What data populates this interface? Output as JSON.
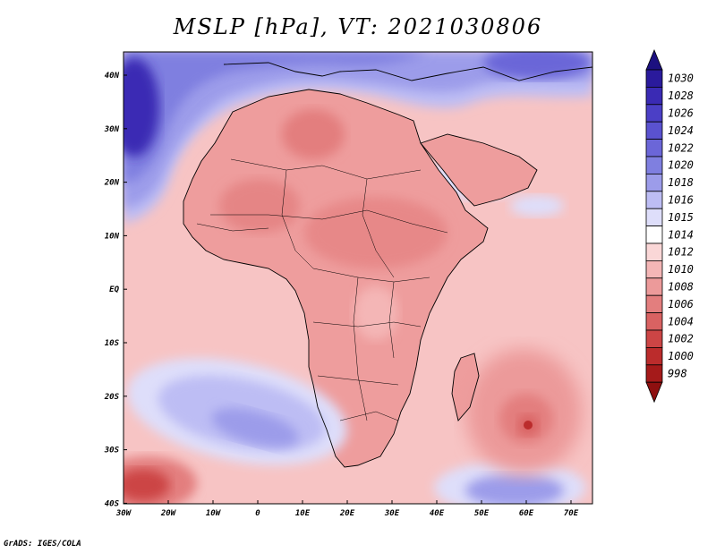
{
  "title": "MSLP [hPa], VT: 2021030806",
  "credit": "GrADS: IGES/COLA",
  "axes": {
    "lon_labels": [
      "30W",
      "20W",
      "10W",
      "0",
      "10E",
      "20E",
      "30E",
      "40E",
      "50E",
      "60E",
      "70E"
    ],
    "lat_labels": [
      "40N",
      "30N",
      "20N",
      "10N",
      "EQ",
      "10S",
      "20S",
      "30S",
      "40S"
    ]
  },
  "colorbar": {
    "levels": [
      "1030",
      "1028",
      "1026",
      "1024",
      "1022",
      "1020",
      "1018",
      "1016",
      "1015",
      "1014",
      "1012",
      "1010",
      "1008",
      "1006",
      "1004",
      "1002",
      "1000",
      "998"
    ],
    "colors": [
      "#2a1a9c",
      "#3a2ab4",
      "#4b3fc6",
      "#5a52d0",
      "#6b66d8",
      "#7f7fe0",
      "#9c9cea",
      "#bdbdf4",
      "#dedefa",
      "#ffffff",
      "#fad7d7",
      "#f4b6b6",
      "#ec9a9a",
      "#e37e7e",
      "#d96262",
      "#cc4545",
      "#bb2c2c",
      "#a51a1a"
    ],
    "top_arrow_color": "#1c1080",
    "bottom_arrow_color": "#8e1010"
  },
  "map": {
    "ocean_color": "#f7c4c4",
    "land_color": "#ee9d9d"
  }
}
